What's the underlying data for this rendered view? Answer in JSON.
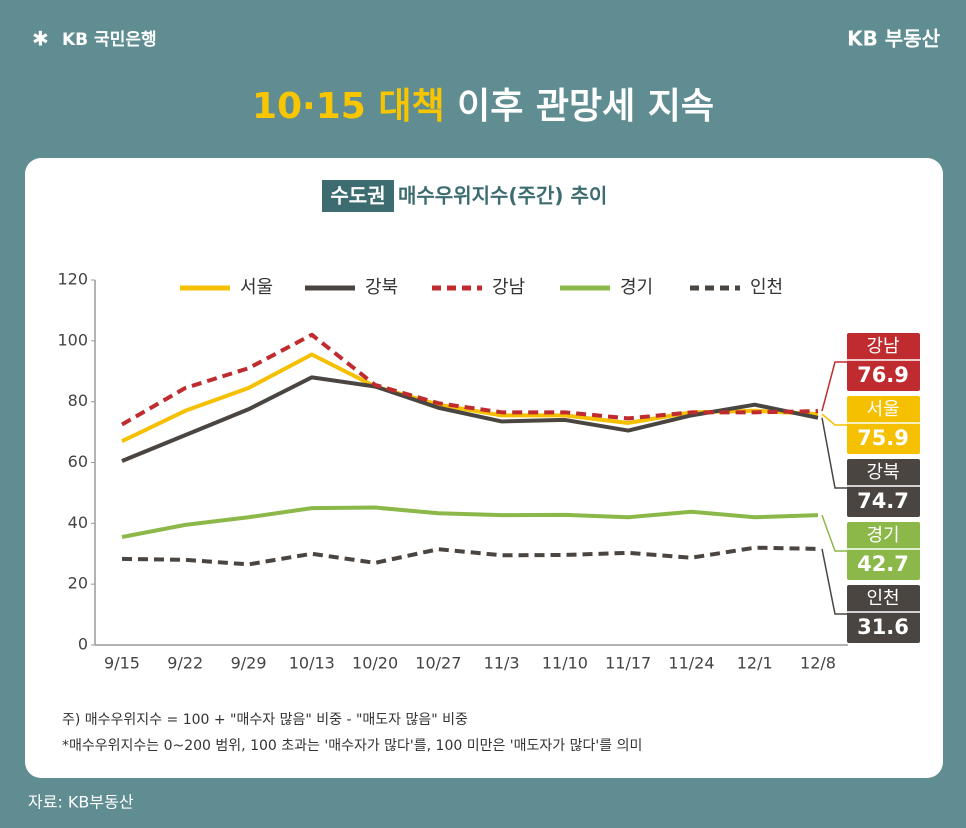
{
  "header": {
    "logo": "KB 국민은행",
    "brand": "KB 부동산",
    "title_highlight": "10·15 대책",
    "title_rest": "이후 관망세 지속"
  },
  "chart_data": {
    "type": "line",
    "title_highlight": "수도권",
    "title": "매수우위지수(주간) 추이",
    "categories": [
      "9/15",
      "9/22",
      "9/29",
      "10/13",
      "10/20",
      "10/27",
      "11/3",
      "11/10",
      "11/17",
      "11/24",
      "12/1",
      "12/8"
    ],
    "series": [
      {
        "name": "서울",
        "color": "#f5c000",
        "dashed": false,
        "values": [
          67,
          77,
          84.5,
          95.5,
          85,
          79,
          75.5,
          75.5,
          73,
          76.5,
          77,
          75.9
        ]
      },
      {
        "name": "강북",
        "color": "#4a4540",
        "dashed": false,
        "values": [
          60.5,
          69,
          77.5,
          88,
          85,
          78,
          73.5,
          74,
          70.5,
          75.5,
          79,
          74.7
        ]
      },
      {
        "name": "강남",
        "color": "#bf2b2f",
        "dashed": true,
        "values": [
          72.5,
          84.5,
          91,
          102,
          85.5,
          79.5,
          76.5,
          76.5,
          74.5,
          76.5,
          76.5,
          76.9
        ]
      },
      {
        "name": "경기",
        "color": "#8cb84a",
        "dashed": false,
        "values": [
          35.5,
          39.5,
          42,
          45,
          45.2,
          43.3,
          42.7,
          42.8,
          42,
          43.8,
          42,
          42.7
        ]
      },
      {
        "name": "인천",
        "color": "#4a4540",
        "dashed": true,
        "values": [
          28.3,
          28,
          26.5,
          30,
          27,
          31.5,
          29.5,
          29.6,
          30.3,
          28.7,
          32,
          31.6
        ]
      }
    ],
    "ylim": [
      0,
      120
    ],
    "yticks": [
      0,
      20,
      40,
      60,
      80,
      100,
      120
    ],
    "grid": false,
    "notes": [
      "주) 매수우위지수 = 100 + \"매수자 많음\" 비중 - \"매도자 많음\" 비중",
      "*매수우위지수는 0~200 범위, 100 초과는 '매수자가 많다'를, 100 미만은 '매도자가 많다'를 의미"
    ]
  },
  "source": "자료: KB부동산"
}
